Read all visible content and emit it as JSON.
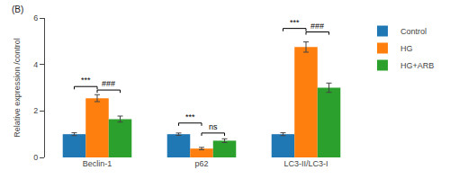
{
  "chart_data": {
    "type": "bar",
    "categories": [
      "Beclin-1",
      "p62",
      "LC3-II/LC3-I"
    ],
    "series": [
      {
        "name": "Control",
        "values": [
          1.0,
          1.0,
          1.0
        ],
        "errors": [
          0.06,
          0.05,
          0.06
        ]
      },
      {
        "name": "HG",
        "values": [
          2.55,
          0.38,
          4.75
        ],
        "errors": [
          0.15,
          0.05,
          0.22
        ]
      },
      {
        "name": "HG+ARB",
        "values": [
          1.65,
          0.72,
          3.0
        ],
        "errors": [
          0.13,
          0.08,
          0.2
        ]
      }
    ],
    "ylabel": "Relative expression /control",
    "ylim": [
      0,
      6
    ],
    "yticks": [
      0,
      2,
      4,
      6
    ],
    "grid": false,
    "legend": "right",
    "annotations": [
      {
        "text": "(B)"
      },
      {
        "text": "***",
        "category": "Beclin-1",
        "between": [
          "Control",
          "HG"
        ],
        "y": 3.05
      },
      {
        "text": "###",
        "category": "Beclin-1",
        "between": [
          "HG",
          "HG+ARB"
        ],
        "y": 2.9
      },
      {
        "text": "***",
        "category": "p62",
        "between": [
          "Control",
          "HG"
        ],
        "y": 1.48
      },
      {
        "text": "ns",
        "category": "p62",
        "between": [
          "HG",
          "HG+ARB"
        ],
        "y": 1.05
      },
      {
        "text": "***",
        "category": "LC3-II/LC3-I",
        "between": [
          "Control",
          "HG"
        ],
        "y": 5.55
      },
      {
        "text": "###",
        "category": "LC3-II/LC3-I",
        "between": [
          "HG",
          "HG+ARB"
        ],
        "y": 5.4
      }
    ]
  }
}
